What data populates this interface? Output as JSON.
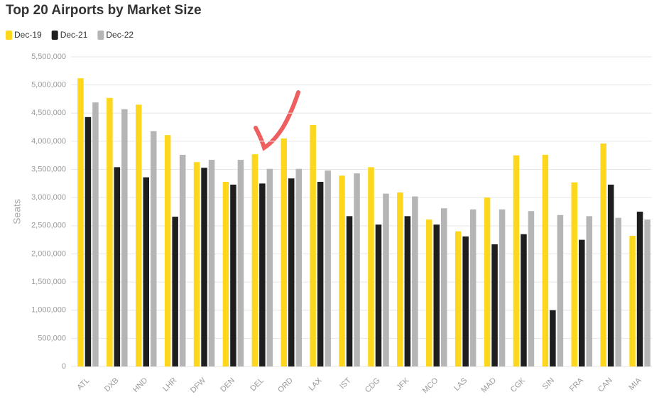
{
  "chart_data": {
    "type": "bar",
    "title": "Top 20 Airports by Market Size",
    "y_label": "Seats",
    "categories": [
      "ATL",
      "DXB",
      "HND",
      "LHR",
      "DFW",
      "DEN",
      "DEL",
      "ORD",
      "LAX",
      "IST",
      "CDG",
      "JFK",
      "MCO",
      "LAS",
      "MAD",
      "CGK",
      "SIN",
      "FRA",
      "CAN",
      "MIA"
    ],
    "series": [
      {
        "name": "Dec-19",
        "color": "#fdd71e",
        "values": [
          5120000,
          4770000,
          4650000,
          4110000,
          3630000,
          3280000,
          3770000,
          4050000,
          4290000,
          3390000,
          3540000,
          3090000,
          2610000,
          2400000,
          3000000,
          3750000,
          3760000,
          3270000,
          3960000,
          2320000
        ]
      },
      {
        "name": "Dec-21",
        "color": "#1e1e1e",
        "values": [
          4430000,
          3540000,
          3360000,
          2660000,
          3530000,
          3230000,
          3250000,
          3340000,
          3280000,
          2670000,
          2520000,
          2670000,
          2520000,
          2310000,
          2170000,
          2350000,
          1000000,
          2250000,
          3230000,
          2750000
        ]
      },
      {
        "name": "Dec-22",
        "color": "#b5b5b5",
        "values": [
          4690000,
          4570000,
          4180000,
          3760000,
          3670000,
          3670000,
          3510000,
          3510000,
          3480000,
          3430000,
          3070000,
          3020000,
          2810000,
          2790000,
          2790000,
          2760000,
          2690000,
          2670000,
          2640000,
          2610000
        ]
      }
    ],
    "ylim": [
      0,
      5500000
    ],
    "yticks": [
      0,
      {
        "value": 500000,
        "label": "500,000"
      },
      {
        "value": 1000000,
        "label": "1,000,000"
      },
      {
        "value": 1500000,
        "label": "1,500,000"
      },
      {
        "value": 2000000,
        "label": "2,000,000"
      },
      {
        "value": 2500000,
        "label": "2,500,000"
      },
      {
        "value": 3000000,
        "label": "3,000,000"
      },
      {
        "value": 3500000,
        "label": "3,500,000"
      },
      {
        "value": 4000000,
        "label": "4,000,000"
      },
      {
        "value": 4500000,
        "label": "4,500,000"
      },
      {
        "value": 5000000,
        "label": "5,000,000"
      },
      {
        "value": 5500000,
        "label": "5,500,000"
      }
    ],
    "grid": true
  }
}
